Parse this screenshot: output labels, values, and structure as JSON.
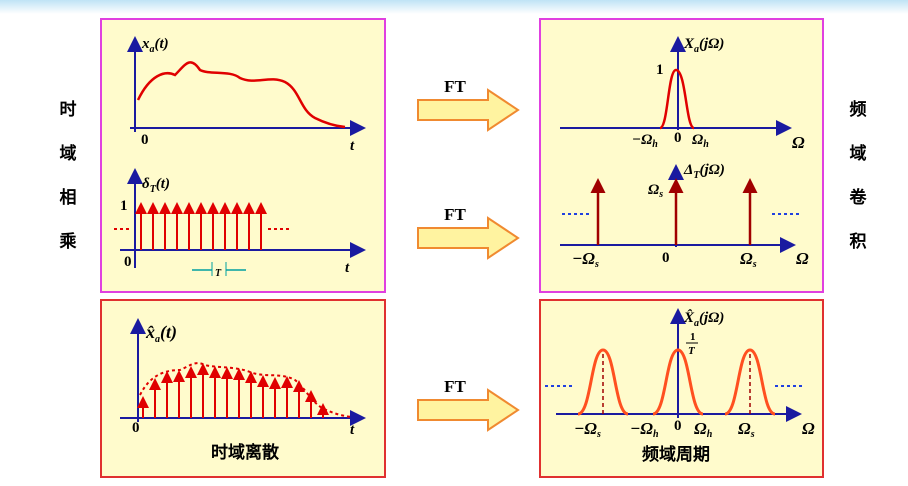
{
  "left_caption": [
    "时",
    "域",
    "相",
    "乘"
  ],
  "right_caption": [
    "频",
    "域",
    "卷",
    "积"
  ],
  "ft": [
    "FT",
    "FT",
    "FT"
  ],
  "time_mult": {
    "signal": {
      "main": "x",
      "sub": "a",
      "arg": "(t)"
    },
    "t_axis": "t",
    "origin": "0",
    "comb": {
      "main": "δ",
      "sub": "T",
      "arg": "(t)"
    },
    "amp": "1",
    "origin2": "0",
    "t_axis2": "t",
    "period": "T"
  },
  "freq_conv": {
    "spectrum": {
      "main": "X",
      "sub": "a",
      "arg": "(jΩ)"
    },
    "amp": "1",
    "neg_h": {
      "main": "−Ω",
      "sub": "h"
    },
    "origin": "0",
    "pos_h": {
      "main": "Ω",
      "sub": "h"
    },
    "w_axis": "Ω",
    "comb": {
      "main": "Δ",
      "sub": "T",
      "arg": "(jΩ)"
    },
    "comb_amp": {
      "main": "Ω",
      "sub": "s"
    },
    "neg_s": {
      "main": "−Ω",
      "sub": "s"
    },
    "origin2": "0",
    "pos_s": {
      "main": "Ω",
      "sub": "s"
    },
    "w_axis2": "Ω"
  },
  "time_discrete": {
    "signal": {
      "main": "x̂",
      "sub": "a",
      "arg": "(t)"
    },
    "origin": "0",
    "t_axis": "t",
    "caption": "时域离散"
  },
  "freq_periodic": {
    "spectrum": {
      "main": "X̂",
      "sub": "a",
      "arg": "(jΩ)"
    },
    "amp_num": "1",
    "amp_den": "T",
    "neg_s": {
      "main": "−Ω",
      "sub": "s"
    },
    "neg_h": {
      "main": "−Ω",
      "sub": "h"
    },
    "origin": "0",
    "pos_h": {
      "main": "Ω",
      "sub": "h"
    },
    "pos_s": {
      "main": "Ω",
      "sub": "s"
    },
    "w_axis": "Ω",
    "caption": "频域周期"
  }
}
